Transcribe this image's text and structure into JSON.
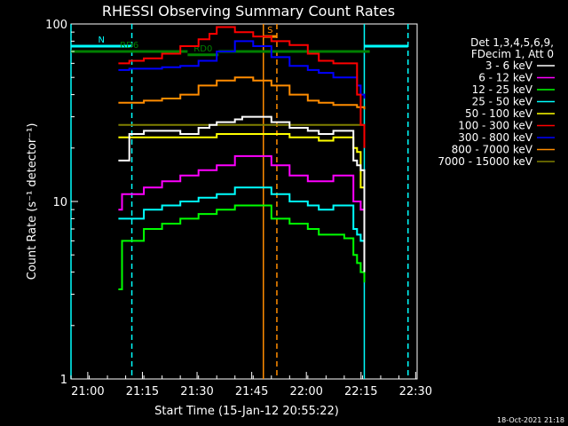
{
  "chart_data": {
    "type": "line",
    "title": "RHESSI Observing Summary Count Rates",
    "xlabel": "Start Time (15-Jan-12 20:55:22)",
    "ylabel": "Count Rate (s⁻¹ detector⁻¹)",
    "yscale": "log",
    "ylim": [
      1,
      100
    ],
    "xlim_minutes": [
      0,
      95
    ],
    "x_ticks": [
      {
        "label": "21:00",
        "min": 4.6
      },
      {
        "label": "21:15",
        "min": 19.6
      },
      {
        "label": "21:30",
        "min": 34.6
      },
      {
        "label": "21:45",
        "min": 49.6
      },
      {
        "label": "22:00",
        "min": 64.6
      },
      {
        "label": "22:15",
        "min": 79.6
      },
      {
        "label": "22:30",
        "min": 94.6
      }
    ],
    "y_ticks": [
      {
        "label": "1",
        "value": 1
      },
      {
        "label": "10",
        "value": 10
      },
      {
        "label": "100",
        "value": 100
      }
    ],
    "legend_header": [
      "Det 1,3,4,5,6,9,",
      "FDecim 1, Att 0"
    ],
    "series": [
      {
        "name": "3 - 6 keV",
        "color": "#ffffff",
        "x": [
          13,
          13.5,
          16,
          20,
          25,
          30,
          35,
          38,
          40,
          45,
          47,
          50,
          55,
          60,
          65,
          68,
          72,
          75,
          77.5,
          78.5,
          79.5,
          80.5
        ],
        "y": [
          17,
          17,
          24,
          25,
          25,
          24,
          26,
          27,
          28,
          29,
          30,
          30,
          28,
          26,
          25,
          24,
          25,
          25,
          17,
          16,
          15,
          4
        ]
      },
      {
        "name": "6 - 12 keV",
        "color": "#ff00ff",
        "x": [
          13,
          14,
          16,
          20,
          25,
          30,
          35,
          40,
          45,
          50,
          55,
          60,
          65,
          68,
          72,
          75,
          77.5,
          78.5,
          79.5,
          80.5
        ],
        "y": [
          9,
          11,
          11,
          12,
          13,
          14,
          15,
          16,
          18,
          18,
          16,
          14,
          13,
          13,
          14,
          14,
          10,
          10,
          9,
          6
        ]
      },
      {
        "name": "12 - 25 keV",
        "color": "#00ff00",
        "x": [
          13,
          14,
          16,
          20,
          25,
          30,
          35,
          40,
          45,
          50,
          55,
          60,
          65,
          68,
          72,
          75,
          77.5,
          78.5,
          79.5,
          80.5
        ],
        "y": [
          3.2,
          6,
          6,
          7,
          7.5,
          8,
          8.5,
          9,
          9.5,
          9.5,
          8,
          7.5,
          7,
          6.5,
          6.5,
          6.2,
          5,
          4.5,
          4,
          3.5
        ]
      },
      {
        "name": "25 - 50 keV",
        "color": "#00ffff",
        "x": [
          13,
          14,
          16,
          20,
          25,
          30,
          35,
          40,
          45,
          50,
          55,
          60,
          65,
          68,
          72,
          75,
          77.5,
          78.5,
          79.5,
          80.5
        ],
        "y": [
          8,
          8,
          8,
          9,
          9.5,
          10,
          10.5,
          11,
          12,
          12,
          11,
          10,
          9.5,
          9,
          9.5,
          9.5,
          7,
          6.5,
          6,
          5
        ]
      },
      {
        "name": "50 - 100 keV",
        "color": "#ffff00",
        "x": [
          13,
          14,
          16,
          20,
          25,
          30,
          35,
          40,
          45,
          50,
          55,
          60,
          65,
          68,
          72,
          75,
          77.5,
          78.5,
          79.5,
          80.5
        ],
        "y": [
          23,
          23,
          23,
          23,
          23,
          23,
          23,
          24,
          24,
          24,
          24,
          23,
          23,
          22,
          23,
          23,
          20,
          19,
          12,
          8
        ]
      },
      {
        "name": "100 - 300 keV",
        "color": "#ff0000",
        "x": [
          13,
          14,
          16,
          20,
          25,
          30,
          35,
          38,
          40,
          45,
          50,
          55,
          60,
          65,
          68,
          72,
          75,
          77.5,
          78.5,
          79.5,
          80.5
        ],
        "y": [
          60,
          60,
          62,
          64,
          68,
          75,
          82,
          88,
          96,
          90,
          85,
          80,
          76,
          68,
          62,
          60,
          60,
          60,
          40,
          27,
          20
        ]
      },
      {
        "name": "300 - 800 keV",
        "color": "#0000ff",
        "x": [
          13,
          14,
          16,
          20,
          25,
          30,
          35,
          40,
          45,
          50,
          55,
          60,
          65,
          68,
          72,
          75,
          77.5,
          78.5,
          79.5,
          80.5
        ],
        "y": [
          55,
          55,
          56,
          56,
          57,
          58,
          62,
          70,
          80,
          75,
          65,
          58,
          55,
          53,
          50,
          50,
          50,
          45,
          40,
          38
        ]
      },
      {
        "name": "800 - 7000 keV",
        "color": "#ff8c00",
        "x": [
          13,
          14,
          16,
          20,
          25,
          30,
          35,
          40,
          45,
          50,
          55,
          60,
          65,
          68,
          72,
          75,
          77.5,
          78.5,
          79.5,
          80.5
        ],
        "y": [
          36,
          36,
          36,
          37,
          38,
          40,
          45,
          48,
          50,
          48,
          45,
          40,
          37,
          36,
          35,
          35,
          35,
          34,
          34,
          33
        ]
      },
      {
        "name": "7000 - 15000 keV",
        "color": "#808000",
        "x": [
          13,
          14,
          16,
          20,
          25,
          30,
          35,
          40,
          45,
          50,
          55,
          60,
          65,
          68,
          72,
          75,
          77.5,
          78.5,
          79.5,
          80.5
        ],
        "y": [
          27,
          27,
          27,
          27,
          27,
          27,
          27,
          27,
          27,
          27,
          27,
          27,
          27,
          27,
          27,
          27,
          27,
          27,
          27,
          27
        ]
      }
    ],
    "bars": [
      {
        "label": "N",
        "color": "#00ffff",
        "y_value": 75,
        "ranges": [
          [
            0,
            16.7
          ],
          [
            80.5,
            92.5
          ]
        ]
      },
      {
        "label": "RD6",
        "color": "#008000",
        "y_value": 70,
        "ranges": [
          [
            0,
            32
          ],
          [
            40.5,
            82
          ]
        ]
      },
      {
        "label": "RD0",
        "color": "#008000",
        "y_value": 67,
        "ranges": [
          [
            32,
            40.5
          ]
        ]
      },
      {
        "label": "S",
        "color": "#ff8c00",
        "y_value": 85,
        "ranges": [
          [
            52.8,
            56.5
          ]
        ]
      }
    ],
    "flag_lines": [
      {
        "color": "#00ffff",
        "min": 0,
        "style": "solid"
      },
      {
        "color": "#00ffff",
        "min": 16.7,
        "style": "dashed"
      },
      {
        "color": "#00ffff",
        "min": 80.5,
        "style": "solid"
      },
      {
        "color": "#00ffff",
        "min": 92.5,
        "style": "dashed"
      },
      {
        "color": "#ff8c00",
        "min": 52.8,
        "style": "solid"
      },
      {
        "color": "#ff8c00",
        "min": 56.5,
        "style": "dashed"
      }
    ],
    "footer_date": "18-Oct-2021 21:18"
  }
}
